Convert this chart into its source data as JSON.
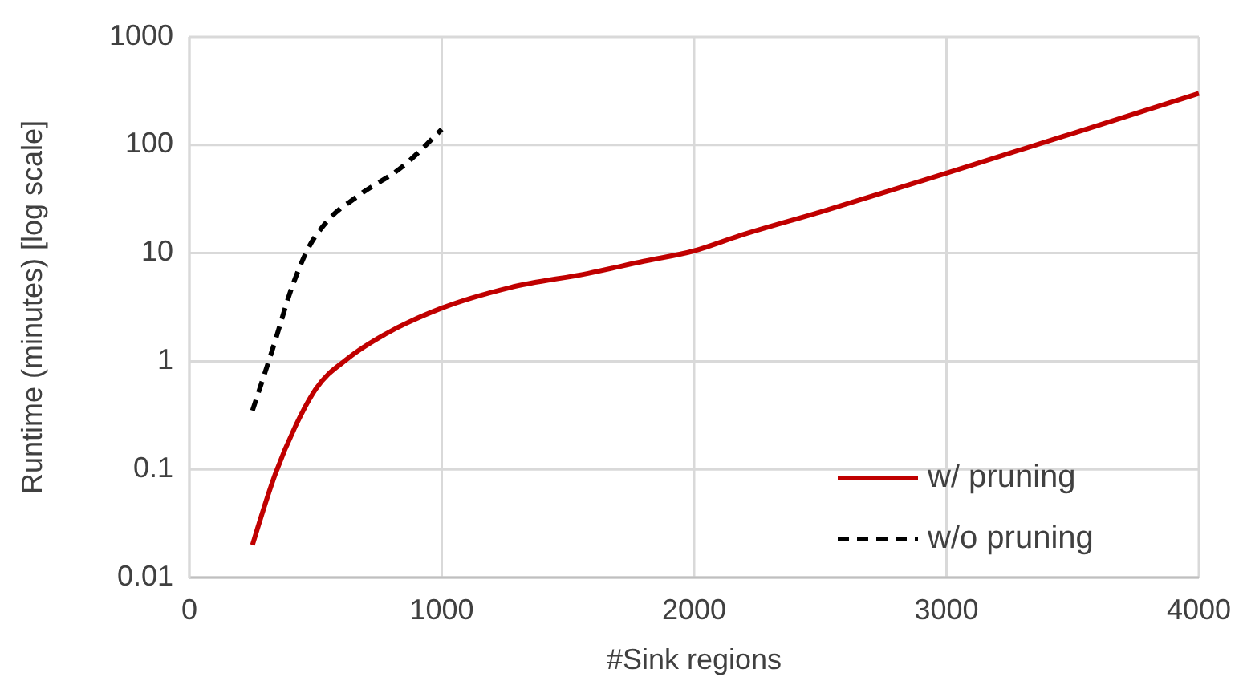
{
  "chart_data": {
    "type": "line",
    "xlabel": "#Sink regions",
    "ylabel": "Runtime (minutes) [log scale]",
    "log": "y",
    "grid": true,
    "legend": "bottom right",
    "xlim": [
      0,
      4000
    ],
    "xticks": [
      0,
      1000,
      2000,
      3000,
      4000
    ],
    "ylim": [
      0.01,
      1000
    ],
    "yticks": [
      0.01,
      0.1,
      1,
      10,
      100,
      1000
    ],
    "series": [
      {
        "name": "w/ pruning",
        "color": "#c00000",
        "line_style": "solid",
        "x": [
          250,
          340,
          420,
          500,
          630,
          780,
          1000,
          1270,
          1580,
          1800,
          2000,
          2180,
          2500,
          3000,
          3500,
          4000
        ],
        "values": [
          0.02,
          0.09,
          0.25,
          0.55,
          1.07,
          1.8,
          3.1,
          4.8,
          6.5,
          8.4,
          10.5,
          14.5,
          24,
          55,
          128,
          300
        ]
      },
      {
        "name": "w/o pruning",
        "color": "#000000",
        "line_style": "dashed",
        "x": [
          250,
          330,
          410,
          470,
          540,
          670,
          840,
          1000
        ],
        "values": [
          0.35,
          1.3,
          5.1,
          11,
          19,
          34,
          62,
          140
        ]
      }
    ]
  }
}
